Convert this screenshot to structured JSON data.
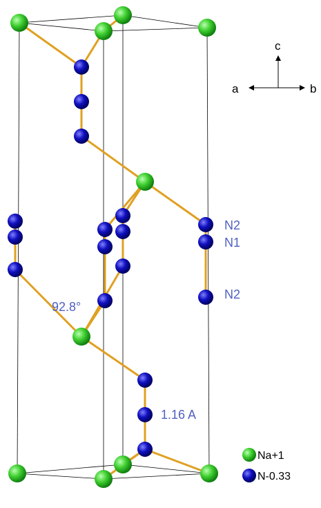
{
  "axes": {
    "c": "c",
    "a": "a",
    "b": "b"
  },
  "atom_labels": [
    "N2",
    "N1",
    "N2"
  ],
  "angle_label": "92.8°",
  "distance_label": "1.16 A",
  "legend": [
    "Na+1",
    "N-0.33"
  ]
}
